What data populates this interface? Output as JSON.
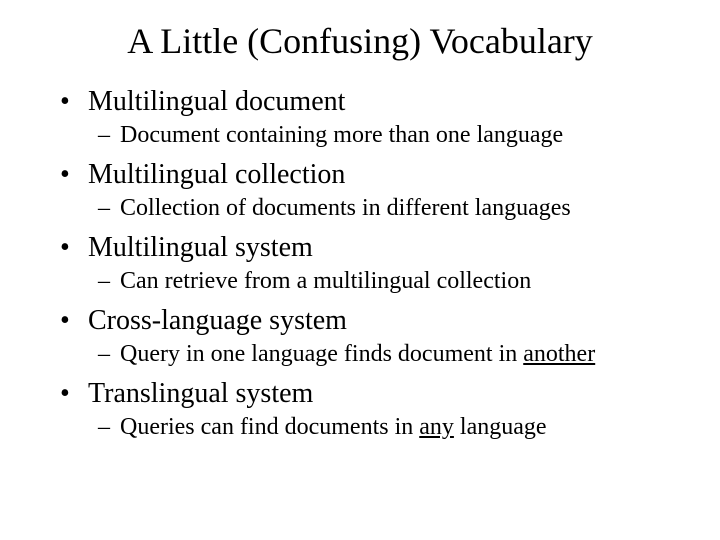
{
  "title": "A Little (Confusing) Vocabulary",
  "items": [
    {
      "term": "Multilingual document",
      "definition": "Document containing more than one language",
      "underline_word": null
    },
    {
      "term": "Multilingual collection",
      "definition": "Collection of documents in different languages",
      "underline_word": null
    },
    {
      "term": "Multilingual system",
      "definition": "Can retrieve from a multilingual collection",
      "underline_word": null
    },
    {
      "term": "Cross-language system",
      "definition_pre": "Query in one language finds document in ",
      "definition_underline": "another",
      "definition_post": "",
      "underline_word": "another"
    },
    {
      "term": "Translingual system",
      "definition_pre": "Queries can find documents in ",
      "definition_underline": "any",
      "definition_post": " language",
      "underline_word": "any"
    }
  ],
  "colors": {
    "background": "#ffffff",
    "text": "#000000"
  },
  "typography": {
    "title_fontsize": 36,
    "bullet_fontsize": 28,
    "sub_fontsize": 24,
    "font_family": "Times New Roman"
  }
}
